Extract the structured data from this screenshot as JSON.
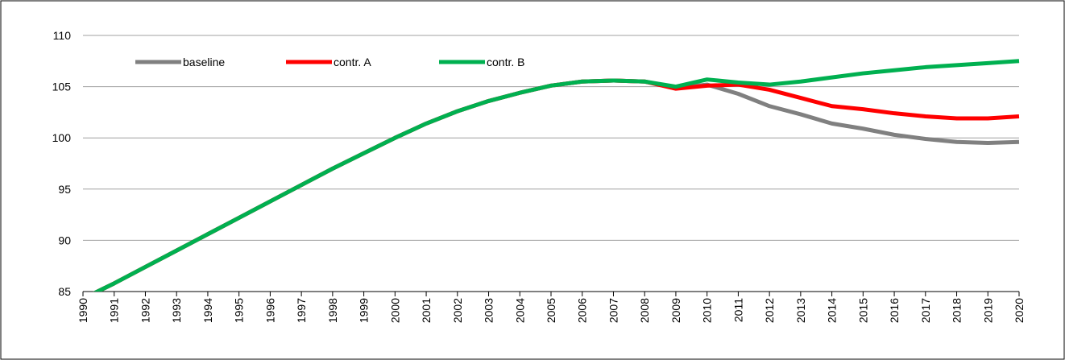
{
  "chart_data": {
    "type": "line",
    "x": [
      1990,
      1991,
      1992,
      1993,
      1994,
      1995,
      1996,
      1997,
      1998,
      1999,
      2000,
      2001,
      2002,
      2003,
      2004,
      2005,
      2006,
      2007,
      2008,
      2009,
      2010,
      2011,
      2012,
      2013,
      2014,
      2015,
      2016,
      2017,
      2018,
      2019,
      2020
    ],
    "xlim": [
      1990,
      2020
    ],
    "xticks": [
      1990,
      1991,
      1992,
      1993,
      1994,
      1995,
      1996,
      1997,
      1998,
      1999,
      2000,
      2001,
      2002,
      2003,
      2004,
      2005,
      2006,
      2007,
      2008,
      2009,
      2010,
      2011,
      2012,
      2013,
      2014,
      2015,
      2016,
      2017,
      2018,
      2019,
      2020
    ],
    "ylim": [
      85,
      110
    ],
    "yticks": [
      85,
      90,
      95,
      100,
      105,
      110
    ],
    "grid": true,
    "legend": "top-left",
    "series": [
      {
        "name": "baseline",
        "color": "#808080",
        "values": [
          84.3,
          85.8,
          87.4,
          89.0,
          90.6,
          92.2,
          93.8,
          95.4,
          97.0,
          98.5,
          100.0,
          101.4,
          102.6,
          103.6,
          104.4,
          105.1,
          105.5,
          105.6,
          105.5,
          104.9,
          105.2,
          104.3,
          103.1,
          102.3,
          101.4,
          100.9,
          100.3,
          99.9,
          99.6,
          99.5,
          99.6
        ]
      },
      {
        "name": "contr. A",
        "color": "#ff0000",
        "values": [
          84.3,
          85.8,
          87.4,
          89.0,
          90.6,
          92.2,
          93.8,
          95.4,
          97.0,
          98.5,
          100.0,
          101.4,
          102.6,
          103.6,
          104.4,
          105.1,
          105.5,
          105.6,
          105.5,
          104.8,
          105.1,
          105.2,
          104.7,
          103.9,
          103.1,
          102.8,
          102.4,
          102.1,
          101.9,
          101.9,
          102.1
        ]
      },
      {
        "name": "contr. B",
        "color": "#00b050",
        "values": [
          84.3,
          85.8,
          87.4,
          89.0,
          90.6,
          92.2,
          93.8,
          95.4,
          97.0,
          98.5,
          100.0,
          101.4,
          102.6,
          103.6,
          104.4,
          105.1,
          105.5,
          105.6,
          105.5,
          105.0,
          105.7,
          105.4,
          105.2,
          105.5,
          105.9,
          106.3,
          106.6,
          106.9,
          107.1,
          107.3,
          107.5
        ]
      }
    ]
  }
}
